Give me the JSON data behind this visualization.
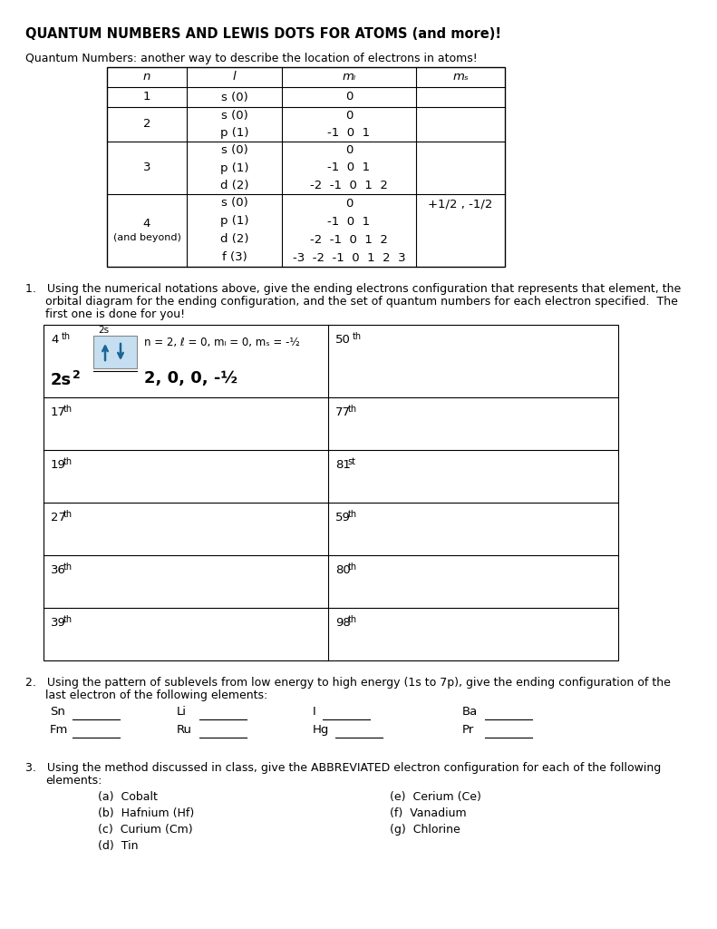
{
  "title": "QUANTUM NUMBERS AND LEWIS DOTS FOR ATOMS (and more)!",
  "subtitle": "Quantum Numbers: another way to describe the location of electrons in atoms!",
  "bg_color": "#ffffff",
  "q3_left": [
    "(a)  Cobalt",
    "(b)  Hafnium (Hf)",
    "(c)  Curium (Cm)",
    "(d)  Tin"
  ],
  "q3_right": [
    "(e)  Cerium (Ce)",
    "(f)  Vanadium",
    "(g)  Chlorine"
  ]
}
